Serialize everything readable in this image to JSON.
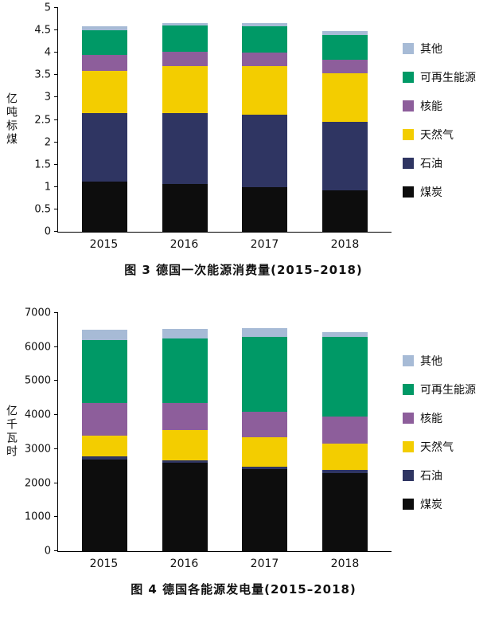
{
  "chart_data": [
    {
      "type": "bar",
      "stacked": true,
      "caption": "图 3  德国一次能源消费量(2015–2018)",
      "ylabel": "亿吨标煤",
      "ylim": [
        0,
        5
      ],
      "yticks": [
        0,
        0.5,
        1,
        1.5,
        2,
        2.5,
        3,
        3.5,
        4,
        4.5,
        5
      ],
      "categories": [
        "2015",
        "2016",
        "2017",
        "2018"
      ],
      "legend_position": "right",
      "grid": false,
      "series": [
        {
          "name": "煤炭",
          "color": "#0d0d0d",
          "values": [
            1.12,
            1.07,
            1.0,
            0.92
          ]
        },
        {
          "name": "石油",
          "color": "#2f3562",
          "values": [
            1.53,
            1.58,
            1.62,
            1.53
          ]
        },
        {
          "name": "天然气",
          "color": "#f3cd00",
          "values": [
            0.95,
            1.05,
            1.08,
            1.1
          ]
        },
        {
          "name": "核能",
          "color": "#8d5e9b",
          "values": [
            0.35,
            0.33,
            0.3,
            0.3
          ]
        },
        {
          "name": "可再生能源",
          "color": "#009966",
          "values": [
            0.55,
            0.58,
            0.6,
            0.55
          ]
        },
        {
          "name": "其他",
          "color": "#a7bbd6",
          "values": [
            0.1,
            0.06,
            0.06,
            0.08
          ]
        }
      ]
    },
    {
      "type": "bar",
      "stacked": true,
      "caption": "图 4  德国各能源发电量(2015–2018)",
      "ylabel": "亿千瓦时",
      "ylim": [
        0,
        7000
      ],
      "yticks": [
        0,
        1000,
        2000,
        3000,
        4000,
        5000,
        6000,
        7000
      ],
      "categories": [
        "2015",
        "2016",
        "2017",
        "2018"
      ],
      "legend_position": "right",
      "grid": false,
      "series": [
        {
          "name": "煤炭",
          "color": "#0d0d0d",
          "values": [
            2700,
            2600,
            2420,
            2300
          ]
        },
        {
          "name": "石油",
          "color": "#2f3562",
          "values": [
            80,
            80,
            70,
            80
          ]
        },
        {
          "name": "天然气",
          "color": "#f3cd00",
          "values": [
            620,
            870,
            860,
            770
          ]
        },
        {
          "name": "核能",
          "color": "#8d5e9b",
          "values": [
            950,
            800,
            750,
            800
          ]
        },
        {
          "name": "可再生能源",
          "color": "#009966",
          "values": [
            1850,
            1900,
            2200,
            2350
          ]
        },
        {
          "name": "其他",
          "color": "#a7bbd6",
          "values": [
            300,
            280,
            250,
            150
          ]
        }
      ]
    }
  ]
}
